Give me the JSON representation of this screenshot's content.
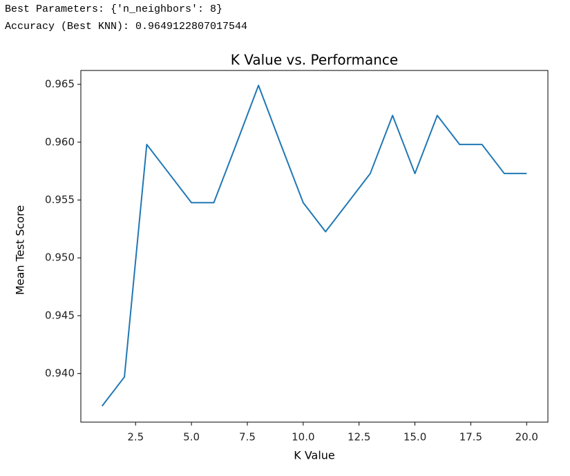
{
  "output_lines": [
    "Best Parameters: {'n_neighbors': 8}",
    "Accuracy (Best KNN): 0.9649122807017544"
  ],
  "chart_data": {
    "type": "line",
    "title": "K Value vs. Performance",
    "x_label": "K Value",
    "y_label": "Mean Test Score",
    "x": [
      1,
      2,
      3,
      4,
      5,
      6,
      7,
      8,
      9,
      10,
      11,
      12,
      13,
      14,
      15,
      16,
      17,
      18,
      19,
      20
    ],
    "series": [
      {
        "color": "#1f77b4",
        "values": [
          0.93719,
          0.9397,
          0.9598,
          0.95729,
          0.95477,
          0.95477,
          0.9598,
          0.96491,
          0.9598,
          0.95477,
          0.95226,
          0.95477,
          0.95729,
          0.96231,
          0.95729,
          0.96231,
          0.9598,
          0.9598,
          0.95729,
          0.95729
        ]
      }
    ],
    "xlim": [
      0.05,
      20.95
    ],
    "ylim": [
      0.9358,
      0.9662
    ],
    "xticks": [
      {
        "value": 2.5,
        "label": "2.5"
      },
      {
        "value": 5,
        "label": "5.0"
      },
      {
        "value": 7.5,
        "label": "7.5"
      },
      {
        "value": 10,
        "label": "10.0"
      },
      {
        "value": 12.5,
        "label": "12.5"
      },
      {
        "value": 15,
        "label": "15.0"
      },
      {
        "value": 17.5,
        "label": "17.5"
      },
      {
        "value": 20,
        "label": "20.0"
      }
    ],
    "yticks": [
      {
        "value": 0.94,
        "label": "0.940"
      },
      {
        "value": 0.945,
        "label": "0.945"
      },
      {
        "value": 0.95,
        "label": "0.950"
      },
      {
        "value": 0.955,
        "label": "0.955"
      },
      {
        "value": 0.96,
        "label": "0.960"
      },
      {
        "value": 0.965,
        "label": "0.965"
      }
    ]
  }
}
